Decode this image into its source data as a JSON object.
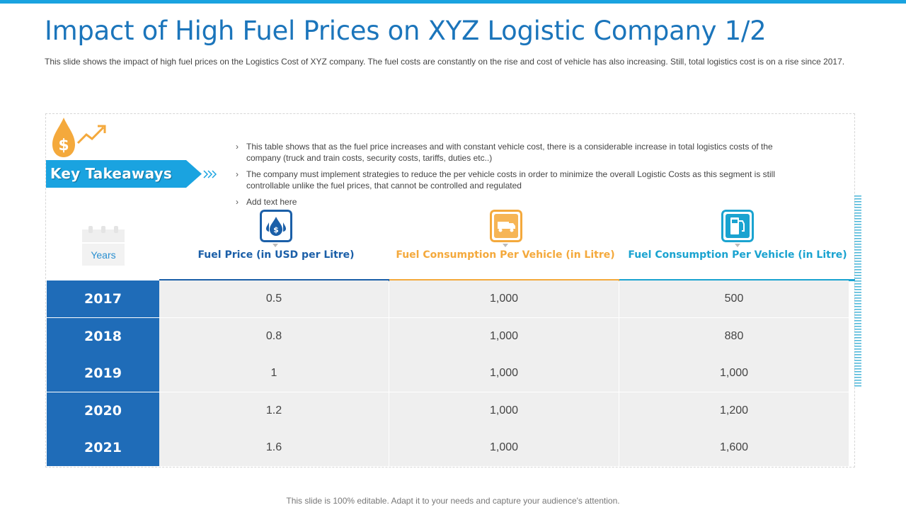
{
  "colors": {
    "accent_blue": "#1b75bb",
    "year_blue": "#1f6cb8",
    "orange": "#f4a93c",
    "teal": "#1aa3d0"
  },
  "header": {
    "title": "Impact of High Fuel Prices on XYZ Logistic Company 1/2",
    "subtitle": "This slide shows the impact of high fuel prices on the Logistics Cost of XYZ company. The fuel costs are constantly on the rise and cost of vehicle has also increasing. Still, total logistics cost is on a rise since 2017."
  },
  "takeaways": {
    "heading": "Key Takeaways",
    "icon": "fuel-drop-dollar-icon",
    "items": [
      "This table shows that as the fuel price increases and with constant vehicle cost, there is a considerable increase in total logistics costs of the company (truck and train costs, security costs, tariffs, duties etc..)",
      "The company must implement strategies to reduce the per vehicle costs in order to minimize the overall Logistic Costs as this segment is still controllable unlike the fuel prices, that cannot be controlled and regulated",
      "Add text here"
    ],
    "bullet_mark": "›"
  },
  "table": {
    "years_label": "Years",
    "columns": [
      {
        "label": "Fuel Price (in USD per Litre)",
        "icon": "fuel-dollar-icon",
        "color": "#1b5fa8"
      },
      {
        "label": "Fuel Consumption Per Vehicle (in Litre)",
        "icon": "truck-icon",
        "color": "#f4a93c"
      },
      {
        "label": "Fuel Consumption Per Vehicle (in Litre)",
        "icon": "fuel-pump-icon",
        "color": "#1aa3d0"
      }
    ],
    "rows": [
      {
        "year": "2017",
        "values": [
          "0.5",
          "1,000",
          "500"
        ]
      },
      {
        "year": "2018",
        "values": [
          "0.8",
          "1,000",
          "880"
        ]
      },
      {
        "year": "2019",
        "values": [
          "1",
          "1,000",
          "1,000"
        ]
      },
      {
        "year": "2020",
        "values": [
          "1.2",
          "1,000",
          "1,200"
        ]
      },
      {
        "year": "2021",
        "values": [
          "1.6",
          "1,000",
          "1,600"
        ]
      }
    ]
  },
  "footer": "This slide is 100% editable. Adapt it to your needs and capture your audience's attention."
}
